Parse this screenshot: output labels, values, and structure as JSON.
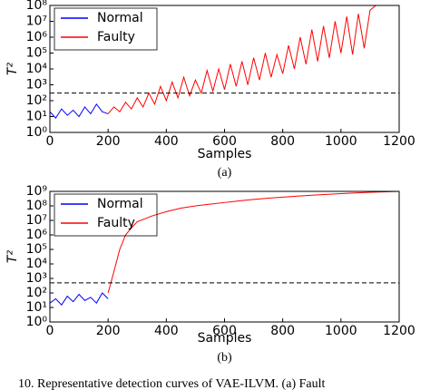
{
  "chart_data": [
    {
      "type": "line",
      "ylabel": "T²",
      "xlabel": "Samples",
      "caption": "(a)",
      "log_y": true,
      "legend": "upper left",
      "xlim": [
        0,
        1200
      ],
      "xticks": [
        0,
        200,
        400,
        600,
        800,
        1000,
        1200
      ],
      "ylim": [
        1,
        100000000
      ],
      "yticks": [
        {
          "value": 1,
          "label": "10⁰"
        },
        {
          "value": 10,
          "label": "10¹"
        },
        {
          "value": 100,
          "label": "10²"
        },
        {
          "value": 1000,
          "label": "10³"
        },
        {
          "value": 10000,
          "label": "10⁴"
        },
        {
          "value": 100000,
          "label": "10⁵"
        },
        {
          "value": 1000000,
          "label": "10⁶"
        },
        {
          "value": 10000000,
          "label": "10⁷"
        },
        {
          "value": 100000000,
          "label": "10⁸"
        }
      ],
      "threshold": 300,
      "series": [
        {
          "name": "Normal",
          "color": "#0000ff",
          "x": [
            0,
            20,
            40,
            60,
            80,
            100,
            120,
            140,
            160,
            180,
            200
          ],
          "values": [
            20,
            8,
            30,
            12,
            25,
            10,
            40,
            15,
            60,
            20,
            15
          ]
        },
        {
          "name": "Faulty",
          "color": "#ff0000",
          "x": [
            200,
            220,
            240,
            260,
            280,
            300,
            320,
            340,
            360,
            380,
            400,
            420,
            440,
            460,
            480,
            500,
            520,
            540,
            560,
            580,
            600,
            620,
            640,
            660,
            680,
            700,
            720,
            740,
            760,
            780,
            800,
            820,
            840,
            860,
            880,
            900,
            920,
            940,
            960,
            980,
            1000,
            1020,
            1040,
            1060,
            1080,
            1100,
            1120,
            1140,
            1160,
            1180,
            1200
          ],
          "values": [
            15,
            40,
            20,
            80,
            30,
            150,
            40,
            300,
            60,
            800,
            100,
            1500,
            150,
            3000,
            200,
            2000,
            300,
            8000,
            400,
            10000,
            500,
            20000,
            800,
            30000,
            1000,
            50000,
            2000,
            100000,
            3000,
            80000,
            5000,
            300000,
            10000,
            1000000,
            20000,
            3000000,
            30000,
            5000000,
            50000,
            10000000,
            100000,
            20000000,
            80000,
            30000000,
            200000,
            50000000,
            100000000,
            100000000,
            100000000,
            100000000,
            100000000
          ]
        }
      ]
    },
    {
      "type": "line",
      "ylabel": "T²",
      "xlabel": "Samples",
      "caption": "(b)",
      "log_y": true,
      "legend": "upper left",
      "xlim": [
        0,
        1200
      ],
      "xticks": [
        0,
        200,
        400,
        600,
        800,
        1000,
        1200
      ],
      "ylim": [
        1,
        1000000000
      ],
      "yticks": [
        {
          "value": 1,
          "label": "10⁰"
        },
        {
          "value": 10,
          "label": "10¹"
        },
        {
          "value": 100,
          "label": "10²"
        },
        {
          "value": 1000,
          "label": "10³"
        },
        {
          "value": 10000,
          "label": "10⁴"
        },
        {
          "value": 100000,
          "label": "10⁵"
        },
        {
          "value": 1000000,
          "label": "10⁶"
        },
        {
          "value": 10000000,
          "label": "10⁷"
        },
        {
          "value": 100000000,
          "label": "10⁸"
        },
        {
          "value": 1000000000,
          "label": "10⁹"
        }
      ],
      "threshold": 500,
      "series": [
        {
          "name": "Normal",
          "color": "#0000ff",
          "x": [
            0,
            20,
            40,
            60,
            80,
            100,
            120,
            140,
            160,
            180,
            200
          ],
          "values": [
            20,
            40,
            15,
            60,
            25,
            80,
            30,
            50,
            20,
            100,
            40
          ]
        },
        {
          "name": "Faulty",
          "color": "#ff0000",
          "x": [
            200,
            220,
            240,
            260,
            280,
            300,
            350,
            400,
            450,
            500,
            550,
            600,
            650,
            700,
            750,
            800,
            850,
            900,
            950,
            1000,
            1050,
            1100,
            1150,
            1200
          ],
          "values": [
            100,
            3000,
            100000,
            1000000,
            3000000,
            8000000,
            20000000,
            40000000,
            70000000,
            100000000,
            130000000,
            170000000,
            220000000,
            280000000,
            340000000,
            400000000,
            470000000,
            540000000,
            620000000,
            700000000,
            780000000,
            860000000,
            930000000,
            1000000000
          ]
        }
      ]
    }
  ],
  "footer": "10.   Representative detection curves of VAE-ILVM.  (a) Fault"
}
